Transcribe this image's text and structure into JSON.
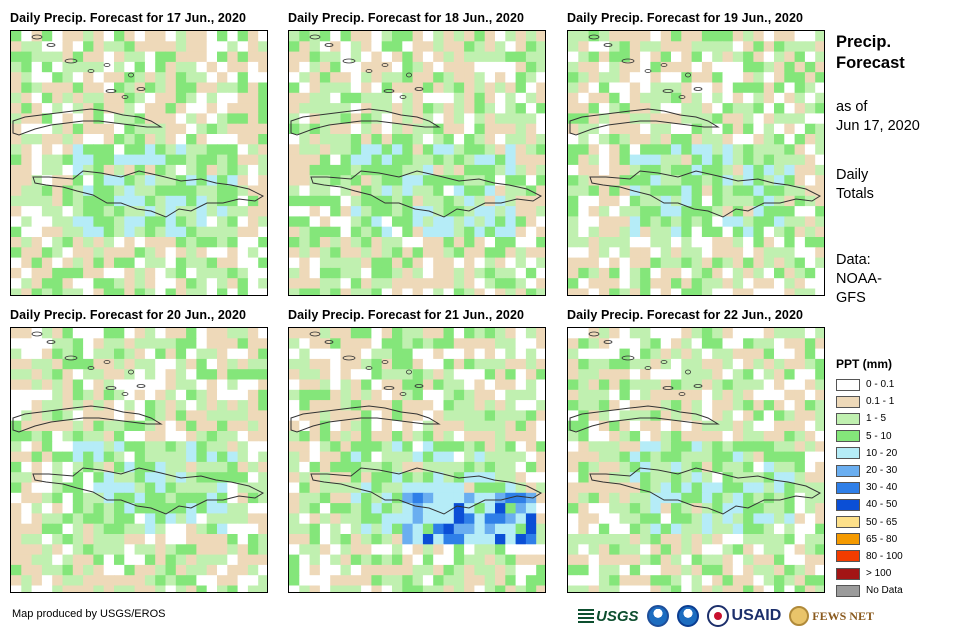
{
  "panels": [
    {
      "title": "Daily Precip. Forecast for 17 Jun., 2020",
      "seed": 17,
      "base": [
        2,
        1,
        2,
        1
      ]
    },
    {
      "title": "Daily Precip. Forecast for 18 Jun., 2020",
      "seed": 18,
      "base": [
        1,
        1,
        2,
        1
      ]
    },
    {
      "title": "Daily Precip. Forecast for 19 Jun., 2020",
      "seed": 19,
      "base": [
        2,
        2,
        0,
        1
      ]
    },
    {
      "title": "Daily Precip. Forecast for 20 Jun., 2020",
      "seed": 20,
      "base": [
        1,
        1,
        0,
        1
      ]
    },
    {
      "title": "Daily Precip. Forecast for 21 Jun., 2020",
      "seed": 21,
      "base": [
        1,
        1,
        3,
        1
      ]
    },
    {
      "title": "Daily Precip. Forecast for 22 Jun., 2020",
      "seed": 22,
      "base": [
        2,
        1,
        1,
        0
      ]
    }
  ],
  "side": {
    "heading": [
      "Precip.",
      "Forecast"
    ],
    "as_of_label": "as of",
    "as_of_date": "Jun 17, 2020",
    "totals": [
      "Daily",
      "Totals"
    ],
    "data_source": [
      "Data:",
      "NOAA-",
      "GFS"
    ]
  },
  "legend": {
    "title": "PPT (mm)",
    "items": [
      {
        "label": "0 - 0.1",
        "color": "#ffffff"
      },
      {
        "label": "0.1 - 1",
        "color": "#eed9b9"
      },
      {
        "label": "1 - 5",
        "color": "#c0f0b0"
      },
      {
        "label": "5 - 10",
        "color": "#84e67a"
      },
      {
        "label": "10 - 20",
        "color": "#b5ecf7"
      },
      {
        "label": "20 - 30",
        "color": "#6aaef0"
      },
      {
        "label": "30 - 40",
        "color": "#2f7fe8"
      },
      {
        "label": "40 - 50",
        "color": "#0b4fd6"
      },
      {
        "label": "50 - 65",
        "color": "#fde08a"
      },
      {
        "label": "65 - 80",
        "color": "#f59a00"
      },
      {
        "label": "80 - 100",
        "color": "#f23c00"
      },
      {
        "label": "> 100",
        "color": "#a31515"
      },
      {
        "label": "No Data",
        "color": "#9b9b9b"
      }
    ]
  },
  "credit": "Map produced by USGS/EROS",
  "logos": {
    "usgs": "USGS",
    "usaid": "USAID",
    "fews": "FEWS NET"
  }
}
